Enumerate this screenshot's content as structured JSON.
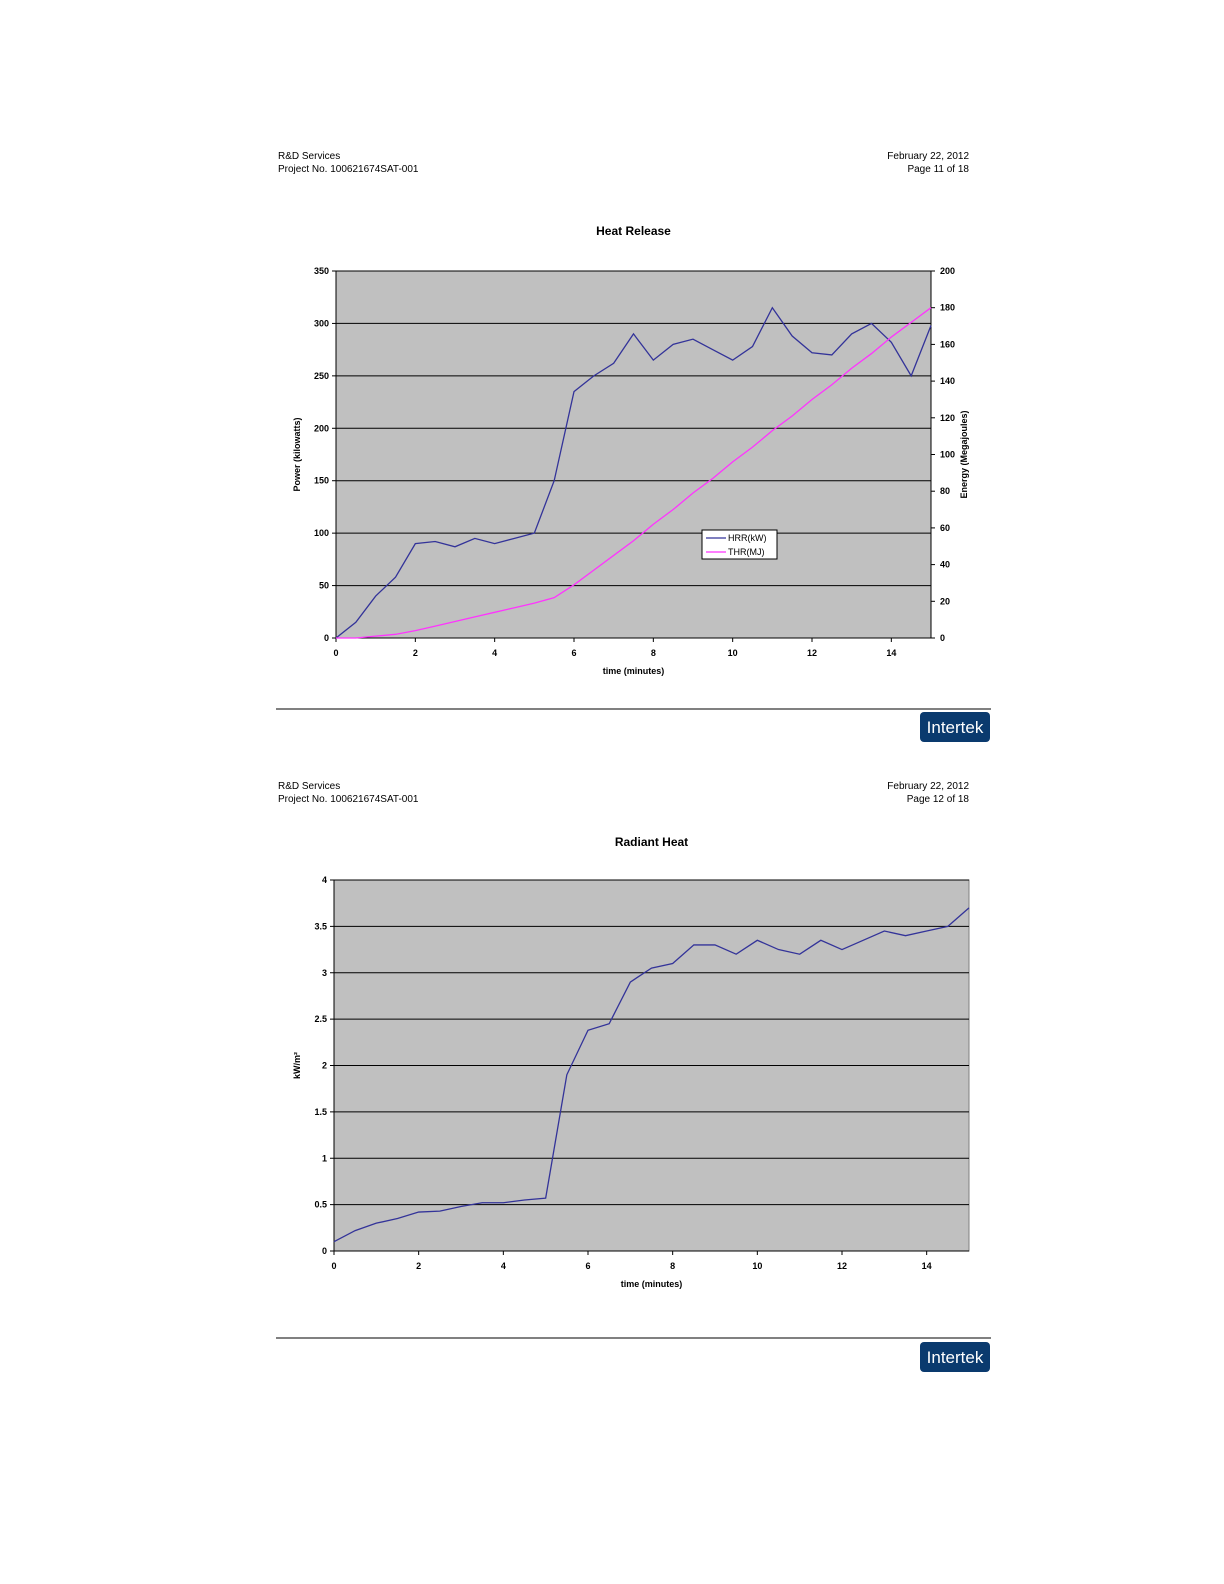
{
  "pages": [
    {
      "header": {
        "left": [
          "R&D Services",
          "Project No. 100621674SAT-001"
        ],
        "right": [
          "February 22, 2012",
          "Page 11 of 18"
        ]
      },
      "logo": "Intertek"
    },
    {
      "header": {
        "left": [
          "R&D Services",
          "Project No. 100621674SAT-001"
        ],
        "right": [
          "February 22, 2012",
          "Page 12 of 18"
        ]
      },
      "logo": "Intertek"
    }
  ],
  "chart_data": [
    {
      "type": "line",
      "title": "Heat Release",
      "x_label": "time (minutes)",
      "y_label": "Power (kilowatts)",
      "y2_label": "Energy (Megajoules)",
      "x": [
        0,
        0.5,
        1,
        1.5,
        2,
        2.5,
        3,
        3.5,
        4,
        4.5,
        5,
        5.5,
        6,
        6.5,
        7,
        7.5,
        8,
        8.5,
        9,
        9.5,
        10,
        10.5,
        11,
        11.5,
        12,
        12.5,
        13,
        13.5,
        14,
        14.5,
        15
      ],
      "series": [
        {
          "name": "HRR(kW)",
          "color": "#333399",
          "values": [
            0,
            15,
            40,
            58,
            90,
            92,
            87,
            95,
            90,
            95,
            100,
            150,
            235,
            250,
            262,
            290,
            265,
            280,
            285,
            275,
            265,
            278,
            315,
            288,
            272,
            270,
            290,
            300,
            282,
            250,
            298
          ]
        },
        {
          "name": "THR(MJ)",
          "color": "#ff33ff",
          "axis": "y2",
          "values": [
            0,
            0,
            1,
            2,
            4,
            6.5,
            9,
            11.5,
            14,
            16.5,
            19,
            22,
            29,
            37,
            45,
            53,
            62,
            70,
            79,
            87,
            96,
            104,
            113,
            121,
            130,
            138,
            147,
            155,
            164,
            172,
            180
          ]
        }
      ],
      "xlim": [
        0,
        15
      ],
      "xticks": [
        0,
        2,
        4,
        6,
        8,
        10,
        12,
        14
      ],
      "ylim": [
        0,
        350
      ],
      "yticks": [
        0,
        50,
        100,
        150,
        200,
        250,
        300,
        350
      ],
      "y2lim": [
        0,
        200
      ],
      "y2ticks": [
        0,
        20,
        40,
        60,
        80,
        100,
        120,
        140,
        160,
        180,
        200
      ],
      "grid": true
    },
    {
      "type": "line",
      "title": "Radiant Heat",
      "x_label": "time (minutes)",
      "y_label": "kW/m²",
      "x": [
        0,
        0.5,
        1,
        1.5,
        2,
        2.5,
        3,
        3.5,
        4,
        4.5,
        5,
        5.5,
        6,
        6.5,
        7,
        7.5,
        8,
        8.5,
        9,
        9.5,
        10,
        10.5,
        11,
        11.5,
        12,
        12.5,
        13,
        13.5,
        14,
        14.5,
        15
      ],
      "series": [
        {
          "color": "#333399",
          "values": [
            0.1,
            0.22,
            0.3,
            0.35,
            0.42,
            0.43,
            0.48,
            0.52,
            0.52,
            0.55,
            0.57,
            1.9,
            2.38,
            2.45,
            2.9,
            3.05,
            3.1,
            3.3,
            3.3,
            3.2,
            3.35,
            3.25,
            3.2,
            3.35,
            3.25,
            3.35,
            3.45,
            3.4,
            3.45,
            3.5,
            3.7
          ]
        }
      ],
      "xlim": [
        0,
        15
      ],
      "xticks": [
        0,
        2,
        4,
        6,
        8,
        10,
        12,
        14
      ],
      "ylim": [
        0,
        4
      ],
      "yticks": [
        0,
        0.5,
        1,
        1.5,
        2,
        2.5,
        3,
        3.5,
        4
      ],
      "grid": true
    }
  ]
}
